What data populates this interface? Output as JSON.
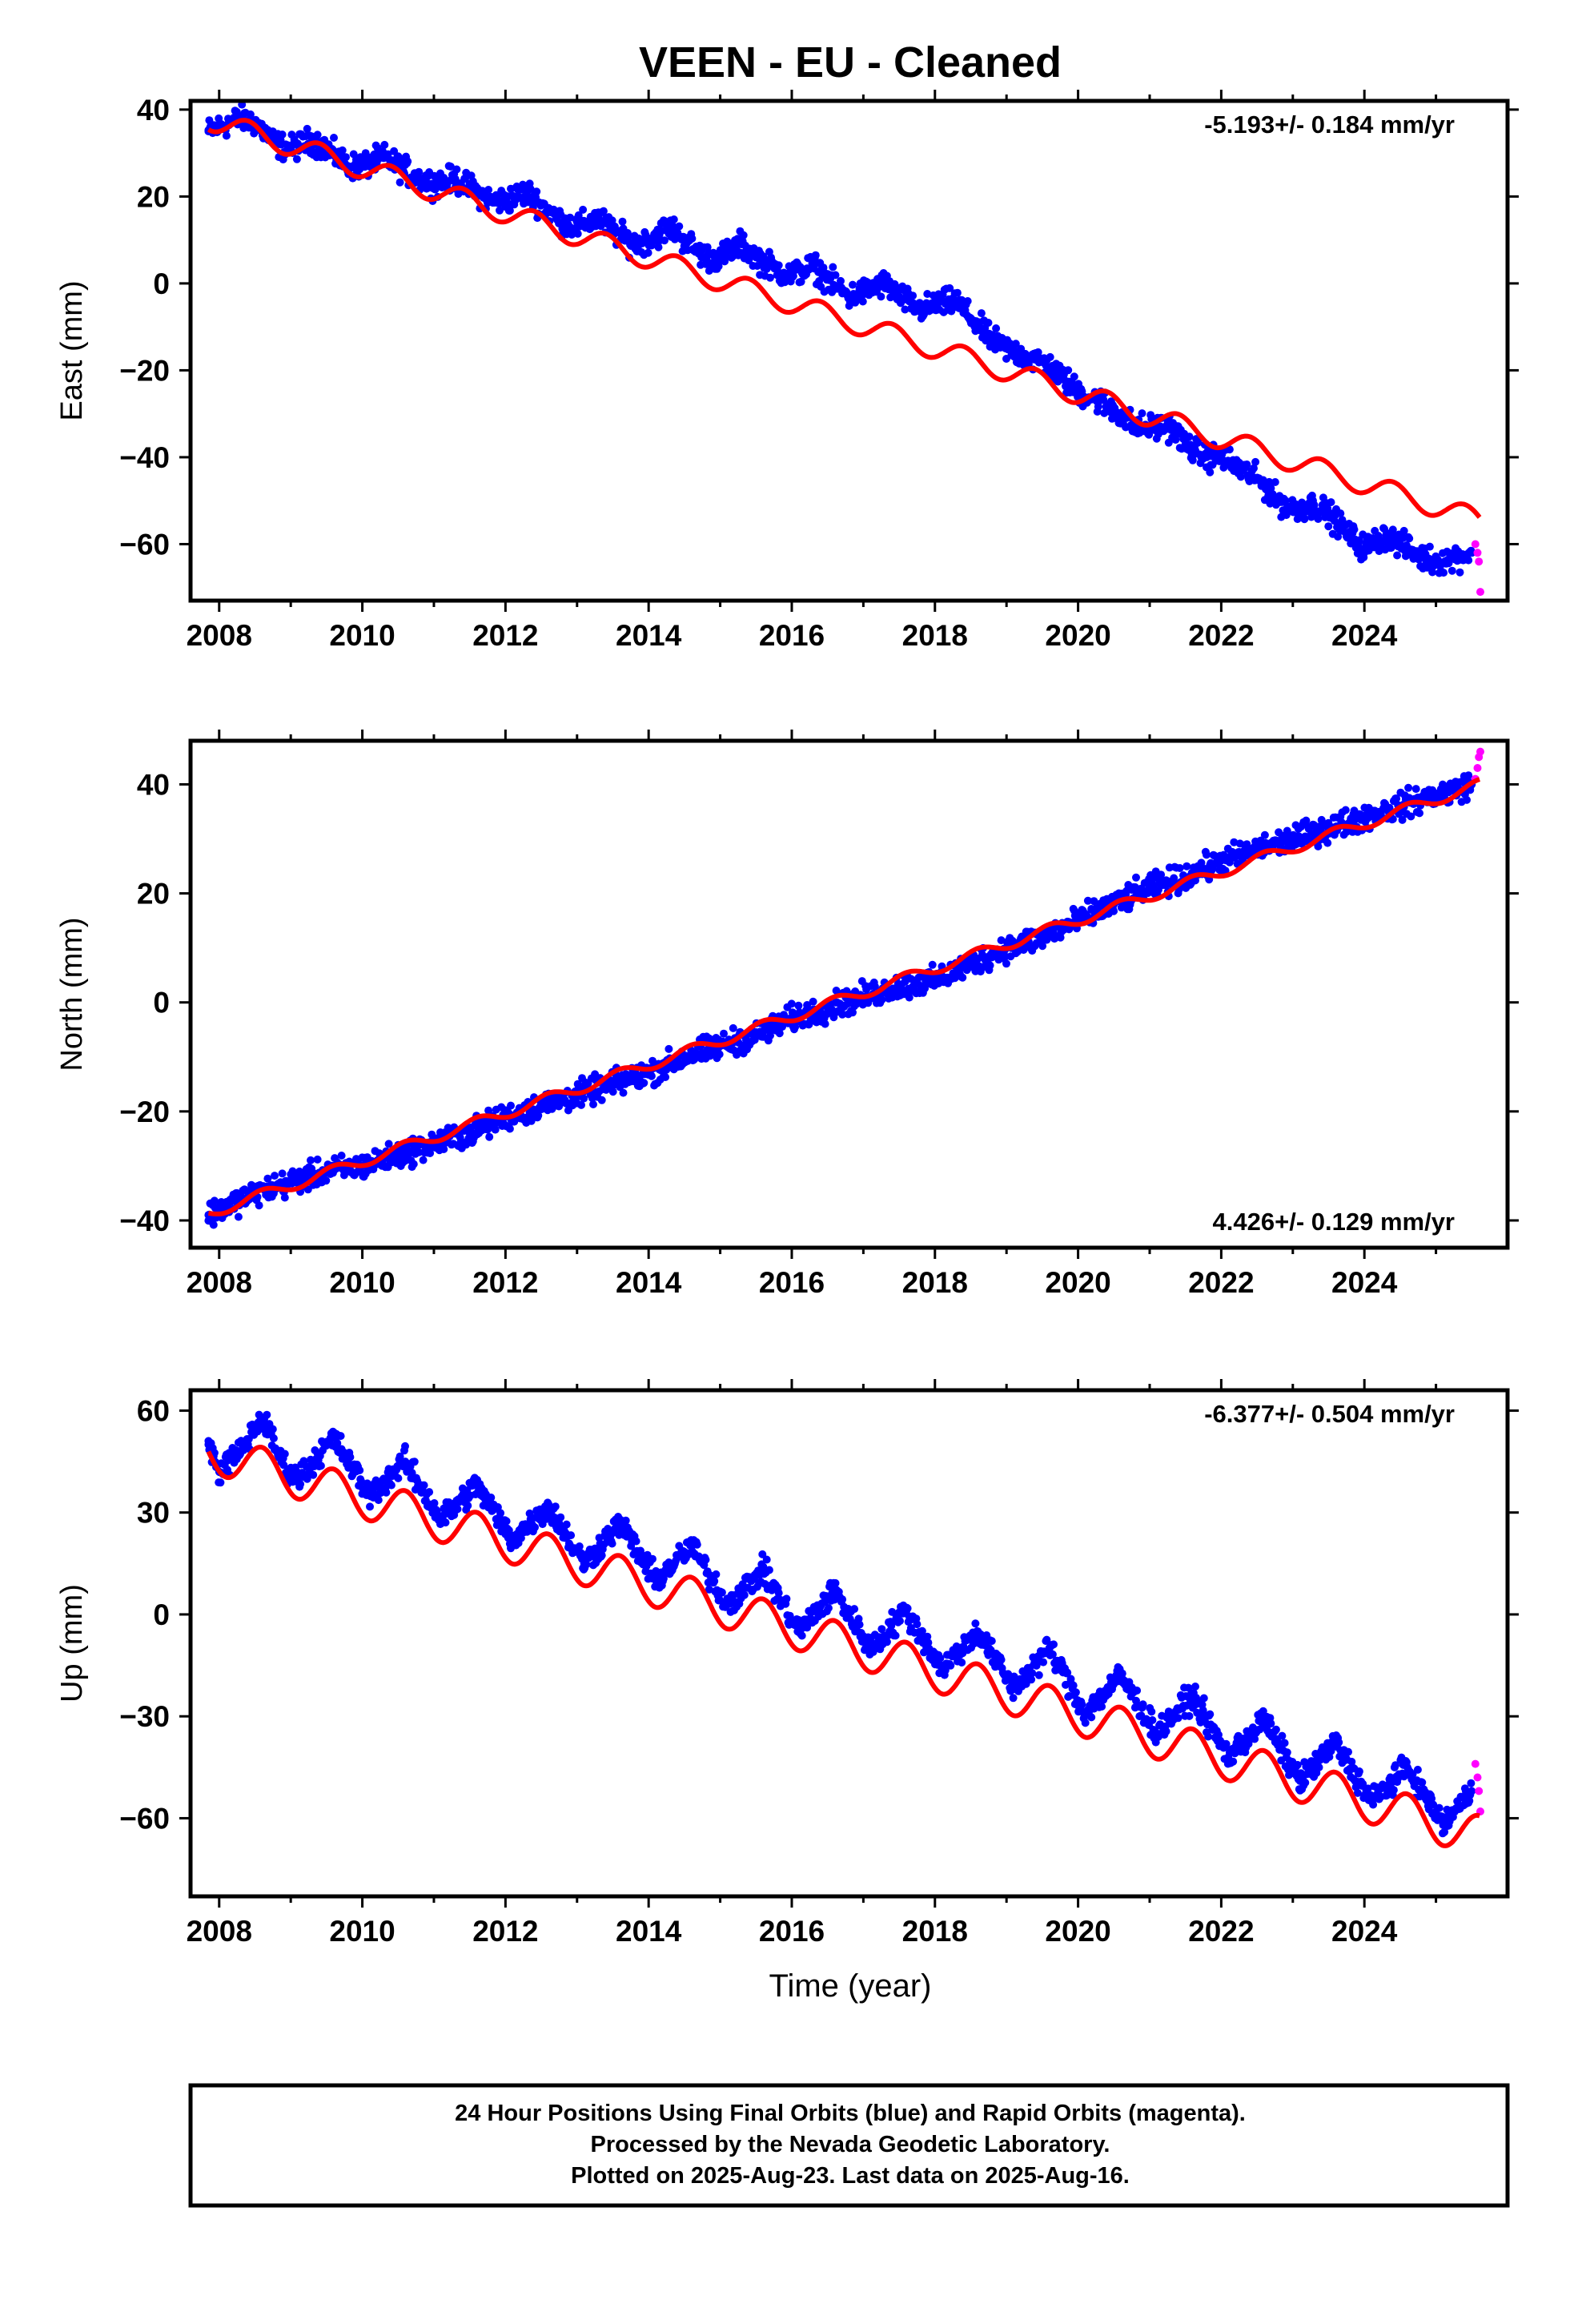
{
  "title": "VEEN  - EU - Cleaned",
  "xlabel": "Time (year)",
  "caption": {
    "line1": "24 Hour Positions Using Final Orbits (blue) and Rapid Orbits (magenta).",
    "line2": "Processed by the Nevada Geodetic Laboratory.",
    "line3": "Plotted on 2025-Aug-23. Last data on 2025-Aug-16."
  },
  "colors": {
    "final": "#0000ff",
    "rapid": "#ff00ff",
    "model": "#ff0000",
    "frame": "#000000"
  },
  "chart_data": [
    {
      "type": "scatter",
      "ylabel": "East (mm)",
      "xlim": [
        2007.6,
        2026.0
      ],
      "ylim": [
        -73,
        42
      ],
      "xticks": [
        2008,
        2010,
        2012,
        2014,
        2016,
        2018,
        2020,
        2022,
        2024
      ],
      "yticks": [
        -60,
        -40,
        -20,
        0,
        20,
        40
      ],
      "rate_label": "-5.193+/- 0.184 mm/yr",
      "rate_position": "top-right",
      "series": [
        {
          "name": "Final Orbits",
          "color": "#0000ff",
          "x": [
            2007.85,
            2008.0,
            2008.3,
            2008.5,
            2008.8,
            2009.0,
            2009.3,
            2009.5,
            2009.8,
            2010.0,
            2010.3,
            2010.5,
            2010.8,
            2011.0,
            2011.3,
            2011.5,
            2011.8,
            2012.0,
            2012.3,
            2012.5,
            2012.8,
            2013.0,
            2013.3,
            2013.5,
            2013.8,
            2014.0,
            2014.3,
            2014.5,
            2014.8,
            2015.0,
            2015.3,
            2015.5,
            2015.8,
            2016.0,
            2016.3,
            2016.5,
            2016.8,
            2017.0,
            2017.3,
            2017.5,
            2017.8,
            2018.0,
            2018.3,
            2018.5,
            2018.8,
            2019.0,
            2019.3,
            2019.5,
            2019.8,
            2020.0,
            2020.3,
            2020.5,
            2020.8,
            2021.0,
            2021.3,
            2021.5,
            2021.8,
            2022.0,
            2022.3,
            2022.5,
            2022.8,
            2023.0,
            2023.3,
            2023.5,
            2023.8,
            2024.0,
            2024.3,
            2024.5,
            2024.8,
            2025.0,
            2025.3,
            2025.5
          ],
          "y": [
            35,
            36,
            38,
            37,
            32,
            31,
            33,
            31,
            27,
            27,
            29,
            27,
            24,
            23,
            24,
            22,
            19,
            19,
            21,
            18,
            14,
            13,
            15,
            12,
            9,
            10,
            13,
            10,
            6,
            6,
            9,
            6,
            3,
            2,
            4,
            1,
            -3,
            -2,
            0,
            -3,
            -6,
            -5,
            -4,
            -8,
            -13,
            -15,
            -17,
            -18,
            -22,
            -25,
            -27,
            -29,
            -33,
            -33,
            -33,
            -37,
            -40,
            -40,
            -43,
            -45,
            -50,
            -52,
            -51,
            -53,
            -58,
            -61,
            -58,
            -60,
            -63,
            -64,
            -63,
            -62
          ]
        },
        {
          "name": "Rapid Orbits",
          "color": "#ff00ff",
          "x": [
            2025.55,
            2025.58,
            2025.6,
            2025.62
          ],
          "y": [
            -60,
            -62,
            -64,
            -71
          ]
        },
        {
          "name": "Model",
          "color": "#ff0000",
          "kind": "line",
          "intercept_2008": 37.0,
          "rate": -5.193,
          "annual_amplitude": 2.5,
          "phase_peak": 0.4
        }
      ]
    },
    {
      "type": "scatter",
      "ylabel": "North (mm)",
      "xlim": [
        2007.6,
        2026.0
      ],
      "ylim": [
        -45,
        48
      ],
      "xticks": [
        2008,
        2010,
        2012,
        2014,
        2016,
        2018,
        2020,
        2022,
        2024
      ],
      "yticks": [
        -40,
        -20,
        0,
        20,
        40
      ],
      "rate_label": "4.426+/- 0.129 mm/yr",
      "rate_position": "bottom-right",
      "series": [
        {
          "name": "Final Orbits",
          "color": "#0000ff",
          "x": [
            2007.85,
            2008.0,
            2008.5,
            2009.0,
            2009.5,
            2010.0,
            2010.5,
            2011.0,
            2011.5,
            2012.0,
            2012.5,
            2013.0,
            2013.5,
            2014.0,
            2014.5,
            2015.0,
            2015.5,
            2016.0,
            2016.5,
            2017.0,
            2017.5,
            2018.0,
            2018.5,
            2019.0,
            2019.5,
            2020.0,
            2020.5,
            2021.0,
            2021.5,
            2022.0,
            2022.5,
            2023.0,
            2023.5,
            2024.0,
            2024.5,
            2025.0,
            2025.5
          ],
          "y": [
            -39,
            -38,
            -35,
            -33,
            -31,
            -30,
            -28,
            -26,
            -24,
            -21,
            -19,
            -17,
            -15,
            -13,
            -10,
            -8,
            -6,
            -3,
            -1,
            1,
            3,
            4,
            7,
            10,
            12,
            15,
            18,
            21,
            23,
            26,
            28,
            30,
            32,
            34,
            36,
            38,
            40
          ]
        },
        {
          "name": "Rapid Orbits",
          "color": "#ff00ff",
          "x": [
            2025.55,
            2025.58,
            2025.6,
            2025.62
          ],
          "y": [
            41,
            43,
            45,
            46
          ]
        },
        {
          "name": "Model",
          "color": "#ff0000",
          "kind": "line",
          "intercept_2008": -38.0,
          "rate": 4.426,
          "annual_amplitude": 1.0,
          "phase_peak": 0.6
        }
      ]
    },
    {
      "type": "scatter",
      "ylabel": "Up (mm)",
      "xlim": [
        2007.6,
        2026.0
      ],
      "ylim": [
        -83,
        66
      ],
      "xticks": [
        2008,
        2010,
        2012,
        2014,
        2016,
        2018,
        2020,
        2022,
        2024
      ],
      "yticks": [
        -60,
        -30,
        0,
        30,
        60
      ],
      "rate_label": "-6.377+/- 0.504 mm/yr",
      "rate_position": "top-right",
      "series": [
        {
          "name": "Final Orbits",
          "color": "#0000ff",
          "x": [
            2007.85,
            2008.0,
            2008.3,
            2008.6,
            2008.9,
            2009.1,
            2009.6,
            2010.1,
            2010.6,
            2011.1,
            2011.6,
            2012.1,
            2012.6,
            2013.1,
            2013.6,
            2014.1,
            2014.6,
            2015.1,
            2015.6,
            2016.1,
            2016.6,
            2017.1,
            2017.6,
            2018.1,
            2018.6,
            2019.1,
            2019.6,
            2020.1,
            2020.6,
            2021.1,
            2021.6,
            2022.1,
            2022.6,
            2023.1,
            2023.6,
            2024.1,
            2024.6,
            2025.1,
            2025.5
          ],
          "y": [
            50,
            42,
            48,
            58,
            44,
            40,
            52,
            35,
            45,
            28,
            38,
            22,
            32,
            15,
            27,
            10,
            20,
            3,
            13,
            -5,
            7,
            -10,
            1,
            -16,
            -5,
            -22,
            -10,
            -29,
            -18,
            -35,
            -24,
            -42,
            -31,
            -49,
            -38,
            -55,
            -45,
            -62,
            -52
          ]
        },
        {
          "name": "Rapid Orbits",
          "color": "#ff00ff",
          "x": [
            2025.55,
            2025.58,
            2025.6,
            2025.62
          ],
          "y": [
            -44,
            -48,
            -52,
            -58
          ]
        },
        {
          "name": "Model",
          "color": "#ff0000",
          "kind": "line",
          "intercept_2008": 47.0,
          "rate": -6.377,
          "annual_amplitude": 6.0,
          "phase_peak": 0.6
        }
      ]
    }
  ]
}
